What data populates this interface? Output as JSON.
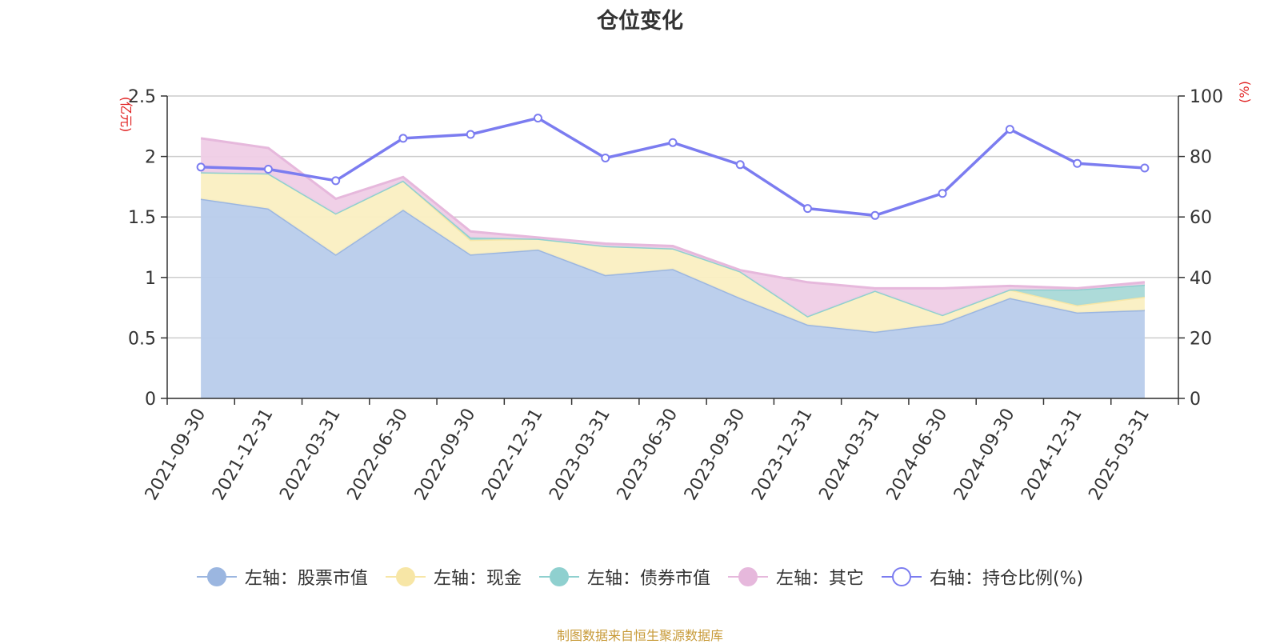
{
  "chart_data": {
    "type": "area",
    "title": "仓位变化",
    "left_axis_unit": "(亿元)",
    "right_axis_unit": "(%)",
    "categories": [
      "2021-09-30",
      "2021-12-31",
      "2022-03-31",
      "2022-06-30",
      "2022-09-30",
      "2022-12-31",
      "2023-03-31",
      "2023-06-30",
      "2023-09-30",
      "2023-12-31",
      "2024-03-31",
      "2024-06-30",
      "2024-09-30",
      "2024-12-31",
      "2025-03-31"
    ],
    "left_ylim": [
      0,
      2.5
    ],
    "left_ticks": [
      "0",
      "0.5",
      "1",
      "1.5",
      "2",
      "2.5"
    ],
    "right_ylim": [
      0,
      100
    ],
    "right_ticks": [
      "0",
      "20",
      "40",
      "60",
      "80",
      "100"
    ],
    "stacked_series": [
      {
        "name": "左轴：股票市值",
        "color": "#9bb6e0",
        "fill": "#b8cceb",
        "values": [
          1.65,
          1.57,
          1.19,
          1.56,
          1.19,
          1.23,
          1.02,
          1.07,
          0.83,
          0.61,
          0.55,
          0.62,
          0.83,
          0.71,
          0.73
        ]
      },
      {
        "name": "左轴：现金",
        "color": "#f7e6a6",
        "fill": "#faefc2",
        "values": [
          0.22,
          0.29,
          0.34,
          0.24,
          0.12,
          0.09,
          0.24,
          0.17,
          0.22,
          0.07,
          0.34,
          0.07,
          0.07,
          0.06,
          0.11
        ]
      },
      {
        "name": "左轴：债券市值",
        "color": "#8fd0cf",
        "fill": "#a9d9d7",
        "values": [
          0,
          0,
          0,
          0,
          0.02,
          0,
          0,
          0,
          0,
          0,
          0,
          0,
          0,
          0.13,
          0.1
        ]
      },
      {
        "name": "左轴：其它",
        "color": "#e6b8dc",
        "fill": "#efcde6",
        "values": [
          0.28,
          0.21,
          0.12,
          0.03,
          0.05,
          0.01,
          0.02,
          0.02,
          0.01,
          0.28,
          0.02,
          0.22,
          0.03,
          0.01,
          0.02
        ]
      }
    ],
    "line_series": {
      "name": "右轴：持仓比例(%)",
      "color": "#7b7cf0",
      "values": [
        76.5,
        75.8,
        72.0,
        86.0,
        87.3,
        92.7,
        79.5,
        84.6,
        77.3,
        62.8,
        60.5,
        67.8,
        89.0,
        77.7,
        76.2
      ]
    },
    "grid": true,
    "legend_position": "bottom"
  },
  "footer": "制图数据来自恒生聚源数据库"
}
